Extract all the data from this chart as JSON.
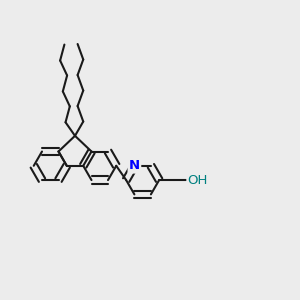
{
  "bg_color": "#ececec",
  "bond_color": "#1a1a1a",
  "n_color": "#0000ff",
  "o_color": "#008080",
  "lw": 1.5,
  "font_size": 9.5
}
